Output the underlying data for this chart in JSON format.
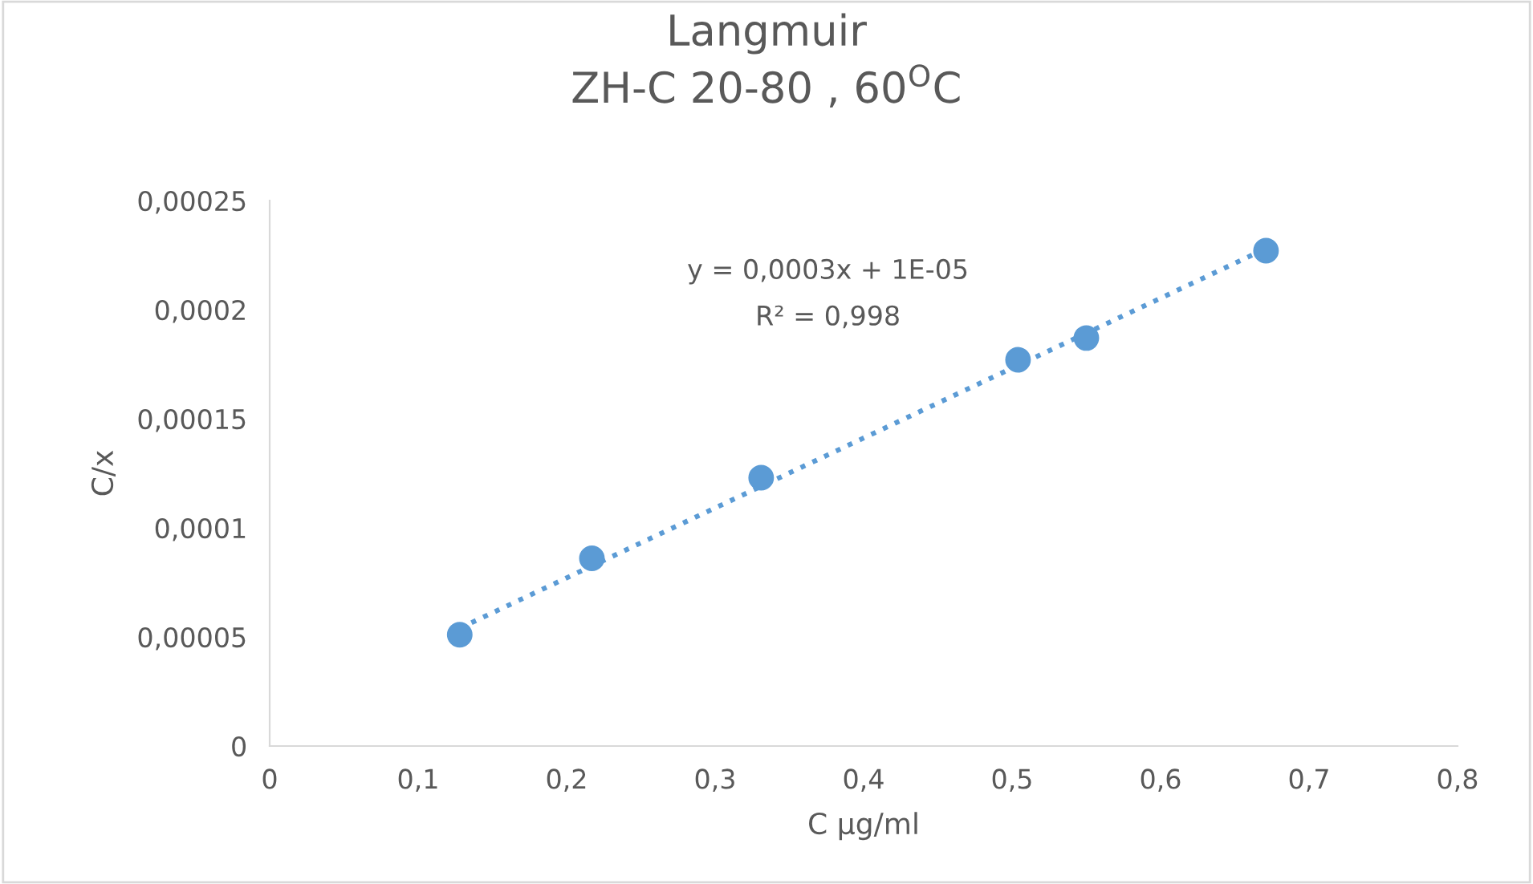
{
  "chart_data": {
    "type": "scatter",
    "title": "Langmuir\nZH-C 20-80 , 60$^{O}$C",
    "xlabel": "C µg/ml",
    "ylabel": "C/x",
    "series": [
      {
        "color": "#5b9bd5",
        "marker": "circle",
        "x": [
          0.128,
          0.217,
          0.331,
          0.504,
          0.55,
          0.671
        ],
        "values": [
          5.1e-05,
          8.6e-05,
          0.000123,
          0.000177,
          0.000187,
          0.000227
        ]
      },
      {
        "type": "line",
        "color": "#5b9bd5",
        "line_style": "dotted",
        "marker": "none",
        "x": [
          0.128,
          0.671
        ],
        "values": [
          5.4e-05,
          0.000228
        ]
      }
    ],
    "annotations": [
      "y = 0,0003x + 1E-05",
      "R² = 0,998"
    ],
    "xlim": [
      0,
      0.8
    ],
    "ylim": [
      0,
      0.00025
    ],
    "xticks": [
      0,
      {
        "value": 0.1,
        "label": "0,1"
      },
      {
        "value": 0.2,
        "label": "0,2"
      },
      {
        "value": 0.3,
        "label": "0,3"
      },
      {
        "value": 0.4,
        "label": "0,4"
      },
      {
        "value": 0.5,
        "label": "0,5"
      },
      {
        "value": 0.6,
        "label": "0,6"
      },
      {
        "value": 0.7,
        "label": "0,7"
      },
      {
        "value": 0.8,
        "label": "0,8"
      }
    ],
    "yticks": [
      0,
      {
        "value": 5e-05,
        "label": "0,00005"
      },
      {
        "value": 0.0001,
        "label": "0,0001"
      },
      {
        "value": 0.00015,
        "label": "0,00015"
      },
      {
        "value": 0.0002,
        "label": "0,0002"
      },
      {
        "value": 0.00025,
        "label": "0,00025"
      }
    ],
    "grid": false,
    "legend": false
  }
}
